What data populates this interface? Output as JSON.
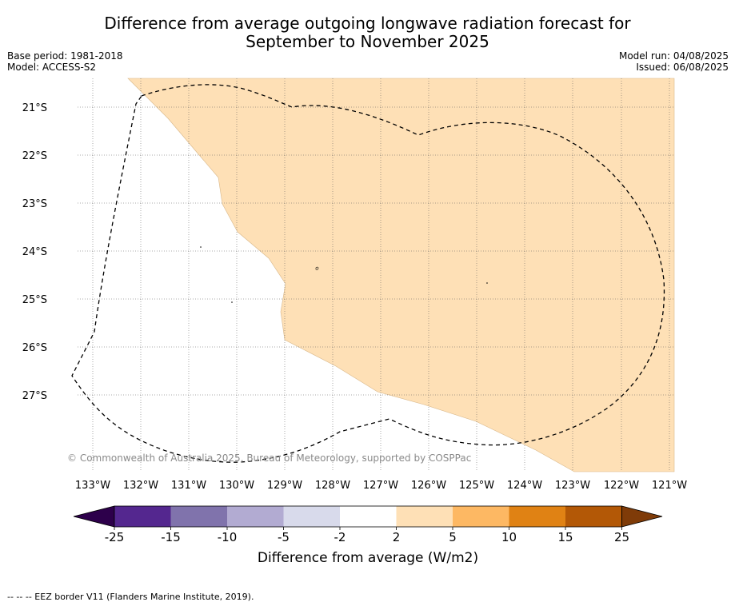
{
  "title_line1": "Difference from average outgoing longwave radiation forecast for",
  "title_line2": "September to November 2025",
  "base_period": "Base period: 1981-2018",
  "model": "Model: ACCESS-S2",
  "model_run": "Model run: 04/08/2025",
  "issued": "Issued: 06/08/2025",
  "copyright": "© Commonwealth of Australia 2025, Bureau of Meteorology, supported by COSPPac",
  "lat_labels": [
    "21°S",
    "22°S",
    "23°S",
    "24°S",
    "25°S",
    "26°S",
    "27°S"
  ],
  "lon_labels": [
    "133°W",
    "132°W",
    "131°W",
    "130°W",
    "129°W",
    "128°W",
    "127°W",
    "126°W",
    "125°W",
    "124°W",
    "123°W",
    "122°W",
    "121°W"
  ],
  "colorbar": {
    "label": "Difference from average (W/m2)",
    "ticks": [
      "-25",
      "-15",
      "-10",
      "-5",
      "-2",
      "2",
      "5",
      "10",
      "15",
      "25"
    ],
    "colors": [
      "#54278f",
      "#8073ac",
      "#b2abd2",
      "#d8daeb",
      "#ffffff",
      "#fee0b6",
      "#fdb863",
      "#e08214",
      "#b35806"
    ],
    "extend_low": "#2d004b",
    "extend_high": "#7f3b08"
  },
  "footer": "-- -- -- EEZ border V11 (Flanders Marine Institute, 2019).",
  "map_fill_color": "#fee0b6"
}
